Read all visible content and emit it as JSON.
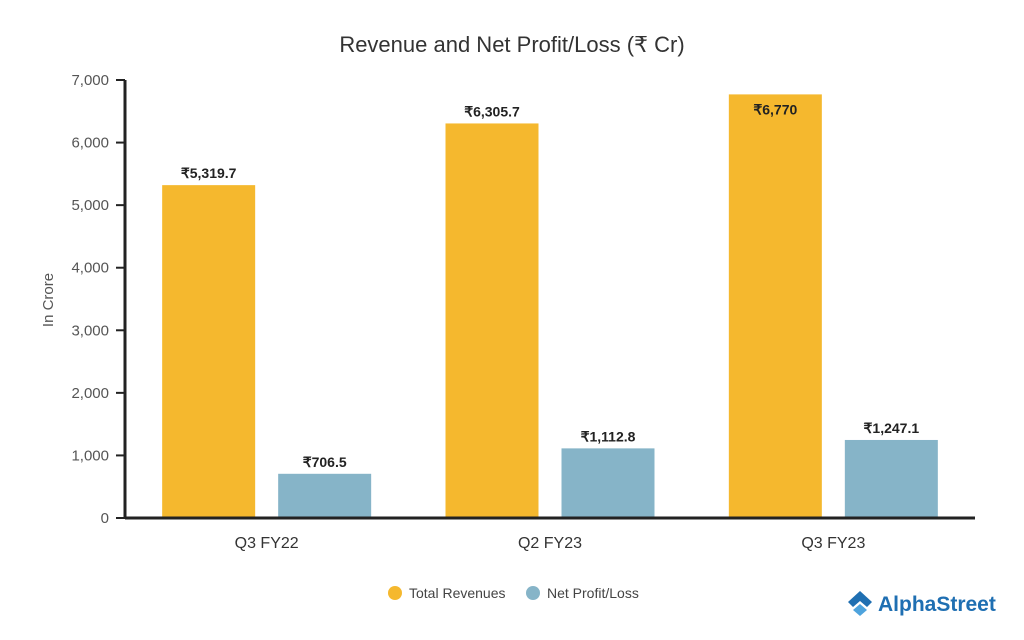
{
  "brand": {
    "name": "AlphaStreet",
    "color": "#1f6fb2"
  },
  "chart_data": {
    "type": "bar",
    "title": "Revenue and Net Profit/Loss (₹ Cr)",
    "xlabel": "",
    "ylabel": "In Crore",
    "categories": [
      "Q3 FY22",
      "Q2 FY23",
      "Q3 FY23"
    ],
    "ylim": [
      0,
      7000
    ],
    "yticks": [
      0,
      1000,
      2000,
      3000,
      4000,
      5000,
      6000,
      7000
    ],
    "ytick_labels": [
      "0",
      "1,000",
      "2,000",
      "3,000",
      "4,000",
      "5,000",
      "6,000",
      "7,000"
    ],
    "grid": false,
    "legend_position": "bottom-center",
    "series": [
      {
        "name": "Total Revenues",
        "color": "#f5b82e",
        "values": [
          5319.7,
          6305.7,
          6770
        ],
        "labels": [
          "₹5,319.7",
          "₹6,305.7",
          "₹6,770"
        ]
      },
      {
        "name": "Net Profit/Loss",
        "color": "#86b4c8",
        "values": [
          706.5,
          1112.8,
          1247.1
        ],
        "labels": [
          "₹706.5",
          "₹1,112.8",
          "₹1,247.1"
        ]
      }
    ]
  }
}
